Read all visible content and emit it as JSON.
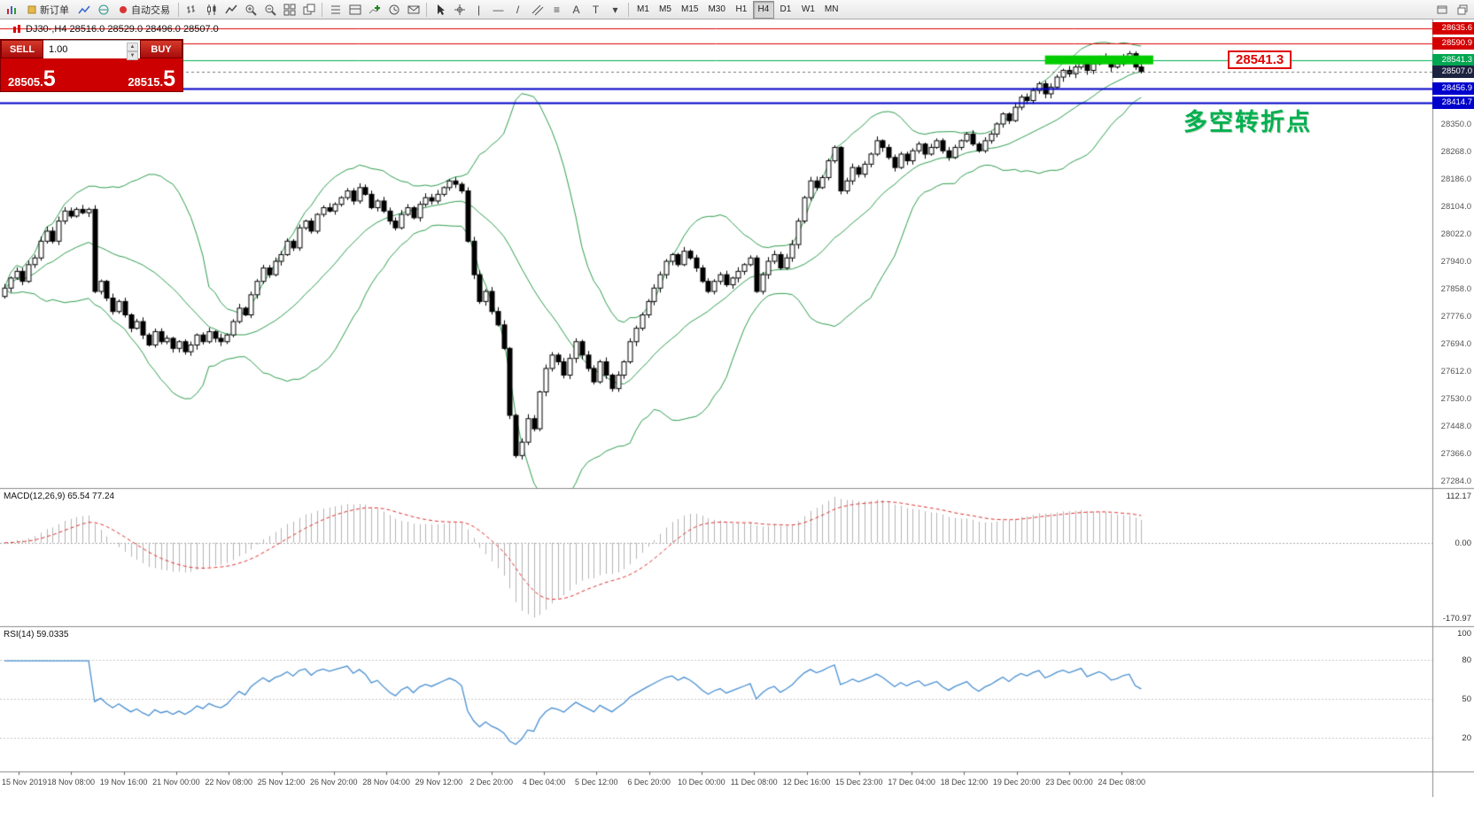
{
  "toolbar": {
    "new_order_label": "新订单",
    "autotrade_label": "自动交易",
    "timeframes": [
      "M1",
      "M5",
      "M15",
      "M30",
      "H1",
      "H4",
      "D1",
      "W1",
      "MN"
    ],
    "active_timeframe": "H4"
  },
  "trade_panel": {
    "sell_label": "SELL",
    "buy_label": "BUY",
    "volume": "1.00",
    "sell_price_prefix": "28505.",
    "sell_price_big": "5",
    "buy_price_prefix": "28515.",
    "buy_price_big": "5"
  },
  "chart": {
    "title": "DJ30-,H4 28516.0 28529.0 28496.0 28507.0",
    "annotation": "多空转折点",
    "zone": {
      "price": 28541.3,
      "label": "28541.3",
      "from_bar": 173,
      "to_bar": 191
    },
    "price_axis": {
      "max": 28662,
      "min": 27263,
      "labels": [
        "28350.0",
        "28268.0",
        "28186.0",
        "28104.0",
        "28022.0",
        "27940.0",
        "27858.0",
        "27776.0",
        "27694.0",
        "27612.0",
        "27530.0",
        "27448.0",
        "27366.0",
        "27284.0"
      ]
    },
    "price_tags": [
      {
        "label": "28635.6",
        "price": 28635.6,
        "color": "#d40000"
      },
      {
        "label": "28590.9",
        "price": 28590.9,
        "color": "#d40000"
      },
      {
        "label": "28541.3",
        "price": 28541.3,
        "color": "#00a651"
      },
      {
        "label": "28507.0",
        "price": 28507.0,
        "color": "#1c2340"
      },
      {
        "label": "28456.9",
        "price": 28456.9,
        "color": "#0000cc"
      },
      {
        "label": "28414.7",
        "price": 28414.7,
        "color": "#0000cc"
      }
    ],
    "lines": [
      {
        "price": 28635.6,
        "color": "#e00000",
        "width": 1,
        "dash": null
      },
      {
        "price": 28590.9,
        "color": "#e00000",
        "width": 1,
        "dash": null
      },
      {
        "price": 28541.3,
        "color": "#00b050",
        "width": 1,
        "dash": null
      },
      {
        "price": 28507.0,
        "color": "#777777",
        "width": 1,
        "dash": [
          3,
          3
        ]
      },
      {
        "price": 28456.9,
        "color": "#0000c8",
        "width": 2,
        "dash": null
      },
      {
        "price": 28414.7,
        "color": "#0000c8",
        "width": 2,
        "dash": null
      }
    ],
    "time_axis": [
      "15 Nov 2019",
      "18 Nov 08:00",
      "19 Nov 16:00",
      "21 Nov 00:00",
      "22 Nov 08:00",
      "25 Nov 12:00",
      "26 Nov 20:00",
      "28 Nov 04:00",
      "29 Nov 12:00",
      "2 Dec 20:00",
      "4 Dec 04:00",
      "5 Dec 12:00",
      "6 Dec 20:00",
      "10 Dec 00:00",
      "11 Dec 08:00",
      "12 Dec 16:00",
      "15 Dec 23:00",
      "17 Dec 04:00",
      "18 Dec 12:00",
      "19 Dec 20:00",
      "23 Dec 00:00",
      "24 Dec 08:00"
    ],
    "candles_close": [
      27860,
      27890,
      27910,
      27880,
      27930,
      27950,
      28000,
      28030,
      28000,
      28060,
      28090,
      28075,
      28095,
      28085,
      28095,
      27850,
      27880,
      27830,
      27790,
      27820,
      27780,
      27740,
      27760,
      27720,
      27690,
      27730,
      27700,
      27710,
      27680,
      27700,
      27670,
      27690,
      27720,
      27700,
      27730,
      27710,
      27700,
      27720,
      27760,
      27800,
      27780,
      27840,
      27880,
      27920,
      27900,
      27940,
      27960,
      28000,
      27980,
      28040,
      28060,
      28030,
      28080,
      28100,
      28090,
      28110,
      28130,
      28150,
      28120,
      28160,
      28140,
      28100,
      28120,
      28090,
      28060,
      28040,
      28080,
      28100,
      28070,
      28110,
      28130,
      28120,
      28140,
      28160,
      28180,
      28170,
      28150,
      28000,
      27900,
      27820,
      27850,
      27790,
      27750,
      27680,
      27480,
      27360,
      27400,
      27470,
      27440,
      27550,
      27620,
      27660,
      27640,
      27600,
      27650,
      27700,
      27660,
      27620,
      27580,
      27640,
      27600,
      27560,
      27600,
      27640,
      27700,
      27740,
      27780,
      27820,
      27860,
      27900,
      27940,
      27960,
      27930,
      27970,
      27950,
      27920,
      27880,
      27850,
      27880,
      27900,
      27870,
      27890,
      27910,
      27930,
      27950,
      27850,
      27900,
      27940,
      27960,
      27920,
      27950,
      27990,
      28060,
      28130,
      28180,
      28160,
      28190,
      28240,
      28280,
      28150,
      28180,
      28220,
      28200,
      28230,
      28260,
      28300,
      28280,
      28250,
      28220,
      28260,
      28240,
      28270,
      28290,
      28260,
      28280,
      28300,
      28270,
      28250,
      28280,
      28300,
      28320,
      28290,
      28270,
      28300,
      28320,
      28350,
      28380,
      28360,
      28400,
      28430,
      28420,
      28450,
      28470,
      28440,
      28460,
      28490,
      28510,
      28500,
      28520,
      28540,
      28510,
      28530,
      28550,
      28540,
      28520,
      28530,
      28550,
      28560,
      28520,
      28507
    ]
  },
  "indicators": {
    "macd": {
      "label": "MACD(12,26,9) 65.54 77.24",
      "axis": [
        "112.17",
        "0.00",
        "-170.97"
      ]
    },
    "rsi": {
      "label": "RSI(14) 59.0335",
      "axis": [
        "100",
        "80",
        "50",
        "20"
      ],
      "levels": [
        80,
        50,
        20
      ]
    }
  },
  "theme": {
    "bull": "#ffffff",
    "bear": "#000000",
    "wick": "#000000",
    "bands": "#2f9e4f",
    "macd_hist": "#b4b4b4",
    "macd_signal": "#e03030",
    "rsi": "#4a90d2",
    "zone": "#00cc00",
    "divider": "#8a8a8a"
  }
}
